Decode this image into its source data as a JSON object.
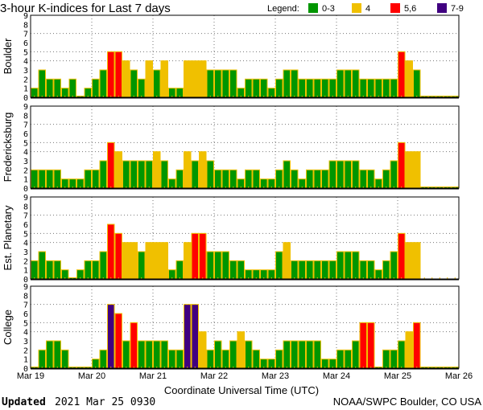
{
  "chart_data": {
    "type": "bar",
    "title": "3-hour K-indices for Last 7 days",
    "legend": {
      "label": "Legend:",
      "position": "top-right",
      "entries": [
        {
          "label": "0-3",
          "color": "#009600"
        },
        {
          "label": "4",
          "color": "#f0c000"
        },
        {
          "label": "5,6",
          "color": "#ff0000"
        },
        {
          "label": "7-9",
          "color": "#400080"
        }
      ]
    },
    "xlabel": "Coordinate Universal Time (UTC)",
    "x_ticks": [
      "Mar 19",
      "Mar 20",
      "Mar 21",
      "Mar 22",
      "Mar 23",
      "Mar 24",
      "Mar 25",
      "Mar 26"
    ],
    "y_ticks": [
      "0",
      "1",
      "2",
      "3",
      "4",
      "5",
      "6",
      "7",
      "8",
      "9"
    ],
    "ylim": [
      0,
      9
    ],
    "bins_per_day": 8,
    "series": [
      {
        "name": "Boulder",
        "values": [
          1,
          3,
          2,
          2,
          1,
          2,
          0,
          1,
          2,
          3,
          5,
          5,
          4,
          3,
          2,
          4,
          3,
          4,
          1,
          1,
          4,
          4,
          4,
          3,
          3,
          3,
          3,
          1,
          2,
          2,
          2,
          1,
          2,
          3,
          3,
          2,
          2,
          2,
          2,
          2,
          3,
          3,
          3,
          2,
          2,
          2,
          2,
          2,
          5,
          4,
          3,
          0,
          0,
          0,
          0,
          0
        ]
      },
      {
        "name": "Fredericksburg",
        "values": [
          2,
          2,
          2,
          2,
          1,
          1,
          1,
          2,
          2,
          3,
          5,
          4,
          3,
          3,
          3,
          3,
          4,
          3,
          1,
          2,
          4,
          3,
          4,
          3,
          2,
          2,
          2,
          1,
          2,
          2,
          1,
          1,
          2,
          3,
          2,
          1,
          2,
          2,
          2,
          3,
          3,
          3,
          3,
          2,
          2,
          1,
          2,
          3,
          5,
          4,
          4,
          0,
          0,
          0,
          0,
          0
        ]
      },
      {
        "name": "Est. Planetary",
        "values": [
          2,
          3,
          2,
          2,
          1,
          0,
          1,
          2,
          2,
          3,
          6,
          5,
          4,
          4,
          3,
          4,
          4,
          4,
          1,
          2,
          4,
          5,
          5,
          3,
          3,
          3,
          2,
          2,
          1,
          1,
          1,
          1,
          3,
          4,
          2,
          2,
          2,
          2,
          2,
          2,
          3,
          3,
          3,
          2,
          2,
          1,
          2,
          3,
          5,
          4,
          4,
          null,
          null,
          null,
          null,
          null
        ]
      },
      {
        "name": "College",
        "values": [
          0,
          2,
          3,
          3,
          2,
          0,
          0,
          0,
          1,
          2,
          7,
          6,
          3,
          5,
          3,
          3,
          3,
          3,
          2,
          2,
          7,
          7,
          4,
          2,
          3,
          2,
          3,
          4,
          3,
          2,
          1,
          1,
          2,
          3,
          3,
          3,
          3,
          3,
          1,
          1,
          2,
          2,
          3,
          5,
          5,
          0,
          2,
          2,
          3,
          4,
          5,
          0,
          0,
          0,
          0,
          0
        ]
      }
    ]
  },
  "footer": {
    "updated_label": "Updated",
    "updated_value": "2021 Mar 25 0930",
    "source": "NOAA/SWPC Boulder, CO USA"
  }
}
